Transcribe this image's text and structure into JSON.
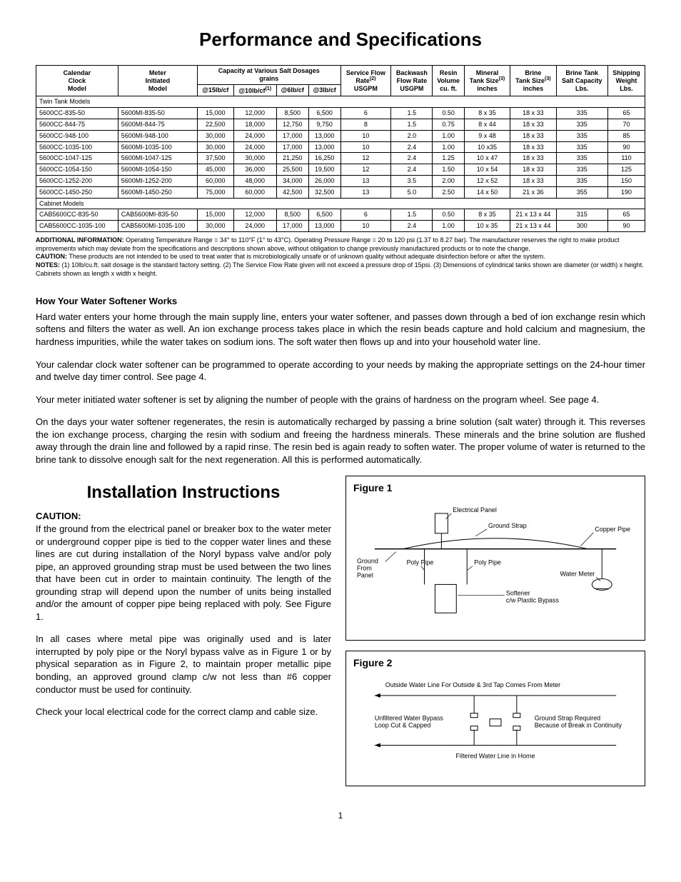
{
  "title": "Performance and Specifications",
  "table": {
    "headers": {
      "col1": [
        "Calendar",
        "Clock",
        "Model"
      ],
      "col2": [
        "Meter",
        "Initiated",
        "Model"
      ],
      "cap_group": "Capacity at Various Salt Dosages",
      "cap_sub": "grains",
      "cap_cols": [
        "@15lb/cf",
        "@10lb/cf",
        "@6lb/cf",
        "@3lb/cf"
      ],
      "svc_flow": [
        "Service Flow",
        "Rate",
        "USGPM"
      ],
      "backwash": [
        "Backwash",
        "Flow Rate",
        "USGPM"
      ],
      "resin": [
        "Resin",
        "Volume",
        "cu. ft."
      ],
      "mineral": [
        "Mineral",
        "Tank Size",
        "inches"
      ],
      "brine": [
        "Brine",
        "Tank Size",
        "inches"
      ],
      "salt": [
        "Brine Tank",
        "Salt Capacity",
        "Lbs."
      ],
      "ship": [
        "Shipping",
        "Weight",
        "Lbs."
      ]
    },
    "section1": "Twin Tank Models",
    "rows1": [
      [
        "5600CC-835-50",
        "5600MI-835-50",
        "15,000",
        "12,000",
        "8,500",
        "6,500",
        "6",
        "1.5",
        "0.50",
        "8 x 35",
        "18 x 33",
        "335",
        "65"
      ],
      [
        "5600CC-844-75",
        "5600MI-844-75",
        "22,500",
        "18,000",
        "12,750",
        "9,750",
        "8",
        "1.5",
        "0.75",
        "8 x 44",
        "18 x 33",
        "335",
        "70"
      ],
      [
        "5600CC-948-100",
        "5600MI-948-100",
        "30,000",
        "24,000",
        "17,000",
        "13,000",
        "10",
        "2.0",
        "1.00",
        "9 x 48",
        "18 x 33",
        "335",
        "85"
      ],
      [
        "5600CC-1035-100",
        "5600MI-1035-100",
        "30,000",
        "24,000",
        "17,000",
        "13,000",
        "10",
        "2.4",
        "1.00",
        "10 x35",
        "18 x 33",
        "335",
        "90"
      ],
      [
        "5600CC-1047-125",
        "5600MI-1047-125",
        "37,500",
        "30,000",
        "21,250",
        "16,250",
        "12",
        "2.4",
        "1.25",
        "10 x 47",
        "18 x 33",
        "335",
        "110"
      ],
      [
        "5600CC-1054-150",
        "5600MI-1054-150",
        "45,000",
        "36,000",
        "25,500",
        "19,500",
        "12",
        "2.4",
        "1.50",
        "10 x 54",
        "18 x 33",
        "335",
        "125"
      ],
      [
        "5600CC-1252-200",
        "5600MI-1252-200",
        "60,000",
        "48,000",
        "34,000",
        "26,000",
        "13",
        "3.5",
        "2.00",
        "12 x 52",
        "18 x 33",
        "335",
        "150"
      ],
      [
        "5600CC-1450-250",
        "5600MI-1450-250",
        "75,000",
        "60,000",
        "42,500",
        "32,500",
        "13",
        "5.0",
        "2.50",
        "14 x 50",
        "21 x 36",
        "355",
        "190"
      ]
    ],
    "section2": "Cabinet Models",
    "rows2": [
      [
        "CAB5600CC-835-50",
        "CAB5600MI-835-50",
        "15,000",
        "12,000",
        "8,500",
        "6,500",
        "6",
        "1.5",
        "0.50",
        "8 x 35",
        "21 x 13 x 44",
        "315",
        "65"
      ],
      [
        "CAB5600CC-1035-100",
        "CAB5600MI-1035-100",
        "30,000",
        "24,000",
        "17,000",
        "13,000",
        "10",
        "2.4",
        "1.00",
        "10 x 35",
        "21 x 13 x 44",
        "300",
        "90"
      ]
    ]
  },
  "notes": {
    "addl_label": "ADDITIONAL INFORMATION:",
    "addl": "Operating Temperature Range = 34° to 110°F (1° to 43°C). Operating Pressure Range = 20 to 120 psi (1.37 to 8.27 bar). The manufacturer reserves the right to make product improvements which may deviate from the specifications and descriptions shown above, without obligation to change previously manufactured products or to note the change.",
    "caution_label": "CAUTION:",
    "caution": "These products are not intended to be used to treat water that is microbiologically unsafe or of unknown quality without adequate disinfection before or after the system.",
    "notes_label": "NOTES:",
    "notes_text": "(1) 10lb/cu.ft. salt dosage is the standard factory setting. (2) The Service Flow Rate given will not exceed a pressure drop of 15psi. (3) Dimensions of cylindrical tanks shown are diameter (or width) x height. Cabinets shown as length x width x height."
  },
  "how_works": {
    "heading": "How Your Water Softener Works",
    "p1": "Hard water enters your home through the main supply line, enters your water softener, and passes down through a bed of ion exchange resin which softens and filters the water as well. An ion exchange process takes place in which the resin beads capture and hold calcium and magnesium, the hardness impurities, while the water takes on sodium ions. The soft water then flows up and into your household water line.",
    "p2": "Your calendar clock water softener can be programmed to operate according to your needs by making the appropriate settings on the 24-hour timer and twelve day timer control. See page 4.",
    "p3": "Your meter initiated water softener is set by aligning the number of people with the grains of hardness on the program wheel. See page 4.",
    "p4": "On the days your water softener regenerates, the resin is automatically recharged by passing a brine solution (salt water) through it. This reverses the ion exchange process, charging the resin with sodium and freeing the hardness minerals. These minerals and the brine solution are flushed away through the drain line and followed by a rapid rinse. The resin bed is again ready to soften water. The proper volume of water is returned to the brine tank to dissolve enough salt for the next regeneration. All this is performed automatically."
  },
  "install": {
    "heading": "Installation Instructions",
    "caution_label": "CAUTION:",
    "p1": "If the ground from the electrical panel or breaker box to the water meter or underground copper pipe is tied to the copper water lines and these lines are cut during installation of the Noryl bypass valve and/or poly pipe, an approved grounding strap must be used between the two lines that have been cut in order to maintain continuity. The length of the grounding strap will depend upon the number of units being installed and/or the amount of copper pipe being replaced with poly. See Figure 1.",
    "p2": "In all cases where metal pipe was originally used and is later interrupted by poly pipe or the Noryl bypass valve as in Figure 1 or by physical separation as in Figure 2, to maintain proper metallic pipe bonding, an approved ground clamp c/w not less than #6 copper conductor must be used for continuity.",
    "p3": "Check your local electrical code for the correct clamp and cable size."
  },
  "figures": {
    "fig1": {
      "title": "Figure 1",
      "labels": {
        "electrical_panel": "Electrical Panel",
        "ground_strap": "Ground Strap",
        "copper_pipe": "Copper Pipe",
        "ground_from_panel": "Ground From Panel",
        "poly_pipe": "Poly Pipe",
        "softener": "Softener c/w Plastic Bypass",
        "water_meter": "Water Meter"
      }
    },
    "fig2": {
      "title": "Figure 2",
      "labels": {
        "outside": "Outside Water Line For Outside & 3rd Tap Comes From Meter",
        "unfiltered": "Unfiltered Water Bypass Loop Cut & Capped",
        "ground_strap": "Ground Strap Required Because of Break in Continuity",
        "filtered": "Filtered Water Line in Home"
      }
    }
  },
  "page_number": "1",
  "colors": {
    "text": "#000000",
    "border": "#000000",
    "bg": "#ffffff"
  }
}
